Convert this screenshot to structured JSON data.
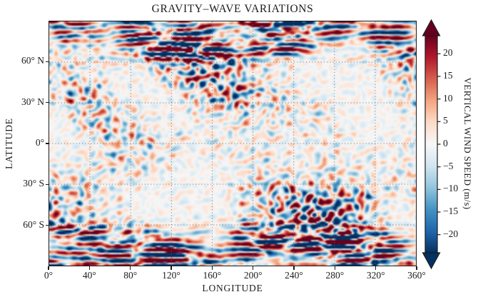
{
  "figure": {
    "background": "#ffffff",
    "text_color": "#1c1c1c",
    "frame_color": "#1c1c1c"
  },
  "chart_data": {
    "type": "heatmap",
    "title": "GRAVITY–WAVE VARIATIONS",
    "xlabel": "LONGITUDE",
    "ylabel": "LATITUDE",
    "x_range": [
      0,
      360
    ],
    "y_range": [
      -90,
      90
    ],
    "xticks": [
      {
        "value": 0,
        "label": "0°"
      },
      {
        "value": 40,
        "label": "40°"
      },
      {
        "value": 80,
        "label": "80°"
      },
      {
        "value": 120,
        "label": "120°"
      },
      {
        "value": 160,
        "label": "160°"
      },
      {
        "value": 200,
        "label": "200°"
      },
      {
        "value": 240,
        "label": "240°"
      },
      {
        "value": 280,
        "label": "280°"
      },
      {
        "value": 320,
        "label": "320°"
      },
      {
        "value": 360,
        "label": "360°"
      }
    ],
    "yticks": [
      {
        "value": 60,
        "label": "60° N"
      },
      {
        "value": 30,
        "label": "30° N"
      },
      {
        "value": 0,
        "label": "0°"
      },
      {
        "value": -30,
        "label": "30° S"
      },
      {
        "value": -60,
        "label": "60° S"
      }
    ],
    "grid": {
      "style": "dotted",
      "color": "#6e6e6e",
      "x_lines": [
        40,
        80,
        120,
        160,
        200,
        240,
        280,
        320
      ],
      "y_lines": [
        60,
        30,
        0,
        -30,
        -60
      ]
    },
    "colorbar": {
      "label": "VERTICAL WIND SPEED (m/s)",
      "range": [
        -24,
        24
      ],
      "extend": "both",
      "colormap": "RdBu_r",
      "stops": [
        "#053061",
        "#2166ac",
        "#4393c3",
        "#92c5de",
        "#d1e5f0",
        "#f7f7f7",
        "#fddbc7",
        "#f4a582",
        "#d6604d",
        "#b2182b",
        "#67001f"
      ],
      "ticks": [
        {
          "value": 20,
          "label": "20"
        },
        {
          "value": 15,
          "label": "15"
        },
        {
          "value": 10,
          "label": "10"
        },
        {
          "value": 5,
          "label": "5"
        },
        {
          "value": 0,
          "label": "0"
        },
        {
          "value": -5,
          "label": "−5"
        },
        {
          "value": -10,
          "label": "−10"
        },
        {
          "value": -15,
          "label": "−15"
        },
        {
          "value": -20,
          "label": "−20"
        }
      ]
    },
    "field": {
      "description": "Turbulent gravity-wave vertical wind perturbation field: weak fine-scale mottling (about ±5 m/s) in the tropics, moderate mottling at mid-latitudes, and high-amplitude zonally elongated wave streaks (about ±20 m/s) poleward of ~55° latitude in both hemispheres.",
      "units": "m/s"
    }
  }
}
